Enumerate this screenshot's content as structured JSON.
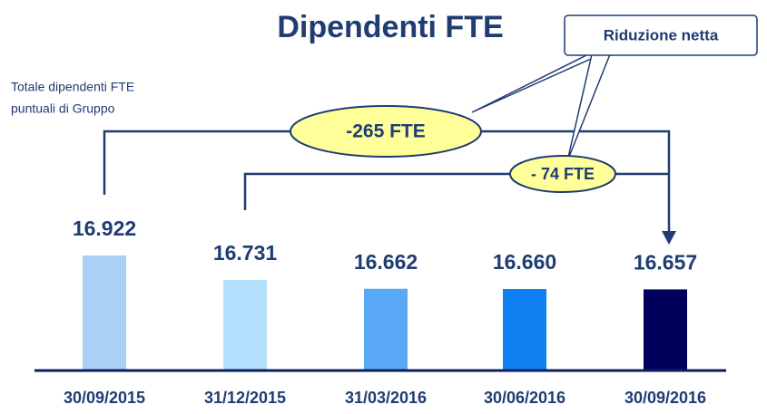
{
  "chart_data": {
    "type": "bar",
    "title": "Dipendenti FTE",
    "subtitle": [
      "Totale dipendenti FTE",
      "puntuali di Gruppo"
    ],
    "categories": [
      "30/09/2015",
      "31/12/2015",
      "31/03/2016",
      "30/06/2016",
      "30/09/2016"
    ],
    "values": [
      16922,
      16731,
      16662,
      16660,
      16657
    ],
    "value_labels": [
      "16.922",
      "16.731",
      "16.662",
      "16.660",
      "16.657"
    ],
    "colors": [
      "#a9d1f7",
      "#b3e1fd",
      "#58a8f5",
      "#0f80f2",
      "#00005c"
    ],
    "ylim": [
      16030,
      17000
    ],
    "annotations": {
      "callout": "Riduzione netta",
      "total_reduction": "-265 FTE",
      "partial_reduction": "- 74 FTE"
    }
  }
}
